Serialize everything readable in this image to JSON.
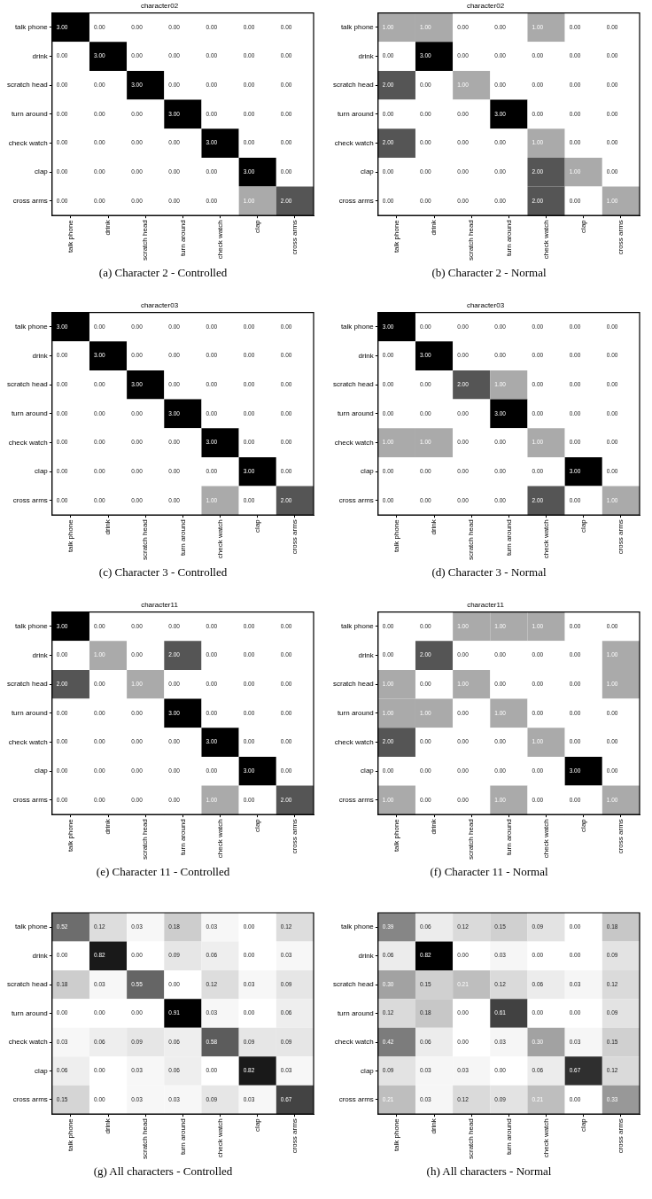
{
  "chart_data": [
    {
      "type": "heatmap",
      "title": "character02",
      "annotations": [
        "(a) Character 2 - Controlled"
      ],
      "categories": [
        "talk phone",
        "drink",
        "scratch head",
        "turn around",
        "check watch",
        "clap",
        "cross arms"
      ],
      "y_categories": [
        "talk phone",
        "drink",
        "scratch head",
        "turn around",
        "check watch",
        "clap",
        "cross arms"
      ],
      "cells": [
        [
          3,
          0,
          0,
          0,
          0,
          0,
          0
        ],
        [
          0,
          3,
          0,
          0,
          0,
          0,
          0
        ],
        [
          0,
          0,
          3,
          0,
          0,
          0,
          0
        ],
        [
          0,
          0,
          0,
          3,
          0,
          0,
          0
        ],
        [
          0,
          0,
          0,
          0,
          3,
          0,
          0
        ],
        [
          0,
          0,
          0,
          0,
          0,
          3,
          0
        ],
        [
          0,
          0,
          0,
          0,
          0,
          1,
          2
        ]
      ],
      "cell_labels": [
        [
          "3.00",
          "0.00",
          "0.00",
          "0.00",
          "0.00",
          "0.00",
          "0.00"
        ],
        [
          "0.00",
          "3.00",
          "0.00",
          "0.00",
          "0.00",
          "0.00",
          "0.00"
        ],
        [
          "0.00",
          "0.00",
          "3.00",
          "0.00",
          "0.00",
          "0.00",
          "0.00"
        ],
        [
          "0.00",
          "0.00",
          "0.00",
          "3.00",
          "0.00",
          "0.00",
          "0.00"
        ],
        [
          "0.00",
          "0.00",
          "0.00",
          "0.00",
          "3.00",
          "0.00",
          "0.00"
        ],
        [
          "0.00",
          "0.00",
          "0.00",
          "0.00",
          "0.00",
          "3.00",
          "0.00"
        ],
        [
          "0.00",
          "0.00",
          "0.00",
          "0.00",
          "0.00",
          "1.00",
          "2.00"
        ]
      ]
    },
    {
      "type": "heatmap",
      "title": "character02",
      "annotations": [
        "(b) Character 2 - Normal"
      ],
      "categories": [
        "talk phone",
        "drink",
        "scratch head",
        "turn around",
        "check watch",
        "clap",
        "cross arms"
      ],
      "y_categories": [
        "talk phone",
        "drink",
        "scratch head",
        "turn around",
        "check watch",
        "clap",
        "cross arms"
      ],
      "cells": [
        [
          1,
          1,
          0,
          0,
          1,
          0,
          0
        ],
        [
          0,
          3,
          0,
          0,
          0,
          0,
          0
        ],
        [
          2,
          0,
          1,
          0,
          0,
          0,
          0
        ],
        [
          0,
          0,
          0,
          3,
          0,
          0,
          0
        ],
        [
          2,
          0,
          0,
          0,
          1,
          0,
          0
        ],
        [
          0,
          0,
          0,
          0,
          2,
          1,
          0
        ],
        [
          0,
          0,
          0,
          0,
          2,
          0,
          1
        ]
      ],
      "cell_labels": [
        [
          "1.00",
          "1.00",
          "0.00",
          "0.00",
          "1.00",
          "0.00",
          "0.00"
        ],
        [
          "0.00",
          "3.00",
          "0.00",
          "0.00",
          "0.00",
          "0.00",
          "0.00"
        ],
        [
          "2.00",
          "0.00",
          "1.00",
          "0.00",
          "0.00",
          "0.00",
          "0.00"
        ],
        [
          "0.00",
          "0.00",
          "0.00",
          "3.00",
          "0.00",
          "0.00",
          "0.00"
        ],
        [
          "2.00",
          "0.00",
          "0.00",
          "0.00",
          "1.00",
          "0.00",
          "0.00"
        ],
        [
          "0.00",
          "0.00",
          "0.00",
          "0.00",
          "2.00",
          "1.00",
          "0.00"
        ],
        [
          "0.00",
          "0.00",
          "0.00",
          "0.00",
          "2.00",
          "0.00",
          "1.00"
        ]
      ]
    },
    {
      "type": "heatmap",
      "title": "character03",
      "annotations": [
        "(c) Character 3 - Controlled"
      ],
      "categories": [
        "talk phone",
        "drink",
        "scratch head",
        "turn around",
        "check watch",
        "clap",
        "cross arms"
      ],
      "y_categories": [
        "talk phone",
        "drink",
        "scratch head",
        "turn around",
        "check watch",
        "clap",
        "cross arms"
      ],
      "cells": [
        [
          3,
          0,
          0,
          0,
          0,
          0,
          0
        ],
        [
          0,
          3,
          0,
          0,
          0,
          0,
          0
        ],
        [
          0,
          0,
          3,
          0,
          0,
          0,
          0
        ],
        [
          0,
          0,
          0,
          3,
          0,
          0,
          0
        ],
        [
          0,
          0,
          0,
          0,
          3,
          0,
          0
        ],
        [
          0,
          0,
          0,
          0,
          0,
          3,
          0
        ],
        [
          0,
          0,
          0,
          0,
          1,
          0,
          2
        ]
      ],
      "cell_labels": [
        [
          "3.00",
          "0.00",
          "0.00",
          "0.00",
          "0.00",
          "0.00",
          "0.00"
        ],
        [
          "0.00",
          "3.00",
          "0.00",
          "0.00",
          "0.00",
          "0.00",
          "0.00"
        ],
        [
          "0.00",
          "0.00",
          "3.00",
          "0.00",
          "0.00",
          "0.00",
          "0.00"
        ],
        [
          "0.00",
          "0.00",
          "0.00",
          "3.00",
          "0.00",
          "0.00",
          "0.00"
        ],
        [
          "0.00",
          "0.00",
          "0.00",
          "0.00",
          "3.00",
          "0.00",
          "0.00"
        ],
        [
          "0.00",
          "0.00",
          "0.00",
          "0.00",
          "0.00",
          "3.00",
          "0.00"
        ],
        [
          "0.00",
          "0.00",
          "0.00",
          "0.00",
          "1.00",
          "0.00",
          "2.00"
        ]
      ]
    },
    {
      "type": "heatmap",
      "title": "character03",
      "annotations": [
        "(d) Character 3 - Normal"
      ],
      "categories": [
        "talk phone",
        "drink",
        "scratch head",
        "turn around",
        "check watch",
        "clap",
        "cross arms"
      ],
      "y_categories": [
        "talk phone",
        "drink",
        "scratch head",
        "turn around",
        "check watch",
        "clap",
        "cross arms"
      ],
      "cells": [
        [
          3,
          0,
          0,
          0,
          0,
          0,
          0
        ],
        [
          0,
          3,
          0,
          0,
          0,
          0,
          0
        ],
        [
          0,
          0,
          2,
          1,
          0,
          0,
          0
        ],
        [
          0,
          0,
          0,
          3,
          0,
          0,
          0
        ],
        [
          1,
          1,
          0,
          0,
          1,
          0,
          0
        ],
        [
          0,
          0,
          0,
          0,
          0,
          3,
          0
        ],
        [
          0,
          0,
          0,
          0,
          2,
          0,
          1
        ]
      ],
      "cell_labels": [
        [
          "3.00",
          "0.00",
          "0.00",
          "0.00",
          "0.00",
          "0.00",
          "0.00"
        ],
        [
          "0.00",
          "3.00",
          "0.00",
          "0.00",
          "0.00",
          "0.00",
          "0.00"
        ],
        [
          "0.00",
          "0.00",
          "2.00",
          "1.00",
          "0.00",
          "0.00",
          "0.00"
        ],
        [
          "0.00",
          "0.00",
          "0.00",
          "3.00",
          "0.00",
          "0.00",
          "0.00"
        ],
        [
          "1.00",
          "1.00",
          "0.00",
          "0.00",
          "1.00",
          "0.00",
          "0.00"
        ],
        [
          "0.00",
          "0.00",
          "0.00",
          "0.00",
          "0.00",
          "3.00",
          "0.00"
        ],
        [
          "0.00",
          "0.00",
          "0.00",
          "0.00",
          "2.00",
          "0.00",
          "1.00"
        ]
      ]
    },
    {
      "type": "heatmap",
      "title": "character11",
      "annotations": [
        "(e) Character 11 - Controlled"
      ],
      "categories": [
        "talk phone",
        "drink",
        "scratch head",
        "turn around",
        "check watch",
        "clap",
        "cross arms"
      ],
      "y_categories": [
        "talk phone",
        "drink",
        "scratch head",
        "turn around",
        "check watch",
        "clap",
        "cross arms"
      ],
      "cells": [
        [
          3,
          0,
          0,
          0,
          0,
          0,
          0
        ],
        [
          0,
          1,
          0,
          2,
          0,
          0,
          0
        ],
        [
          2,
          0,
          1,
          0,
          0,
          0,
          0
        ],
        [
          0,
          0,
          0,
          3,
          0,
          0,
          0
        ],
        [
          0,
          0,
          0,
          0,
          3,
          0,
          0
        ],
        [
          0,
          0,
          0,
          0,
          0,
          3,
          0
        ],
        [
          0,
          0,
          0,
          0,
          1,
          0,
          2
        ]
      ],
      "cell_labels": [
        [
          "3.00",
          "0.00",
          "0.00",
          "0.00",
          "0.00",
          "0.00",
          "0.00"
        ],
        [
          "0.00",
          "1.00",
          "0.00",
          "2.00",
          "0.00",
          "0.00",
          "0.00"
        ],
        [
          "2.00",
          "0.00",
          "1.00",
          "0.00",
          "0.00",
          "0.00",
          "0.00"
        ],
        [
          "0.00",
          "0.00",
          "0.00",
          "3.00",
          "0.00",
          "0.00",
          "0.00"
        ],
        [
          "0.00",
          "0.00",
          "0.00",
          "0.00",
          "3.00",
          "0.00",
          "0.00"
        ],
        [
          "0.00",
          "0.00",
          "0.00",
          "0.00",
          "0.00",
          "3.00",
          "0.00"
        ],
        [
          "0.00",
          "0.00",
          "0.00",
          "0.00",
          "1.00",
          "0.00",
          "2.00"
        ]
      ]
    },
    {
      "type": "heatmap",
      "title": "character11",
      "annotations": [
        "(f) Character 11 - Normal"
      ],
      "categories": [
        "talk phone",
        "drink",
        "scratch head",
        "turn around",
        "check watch",
        "clap",
        "cross arms"
      ],
      "y_categories": [
        "talk phone",
        "drink",
        "scratch head",
        "turn around",
        "check watch",
        "clap",
        "cross arms"
      ],
      "cells": [
        [
          0,
          0,
          1,
          1,
          1,
          0,
          0
        ],
        [
          0,
          2,
          0,
          0,
          0,
          0,
          1
        ],
        [
          1,
          0,
          1,
          0,
          0,
          0,
          1
        ],
        [
          1,
          1,
          0,
          1,
          0,
          0,
          0
        ],
        [
          2,
          0,
          0,
          0,
          1,
          0,
          0
        ],
        [
          0,
          0,
          0,
          0,
          0,
          3,
          0
        ],
        [
          1,
          0,
          0,
          1,
          0,
          0,
          1
        ]
      ],
      "cell_labels": [
        [
          "0.00",
          "0.00",
          "1.00",
          "1.00",
          "1.00",
          "0.00",
          "0.00"
        ],
        [
          "0.00",
          "2.00",
          "0.00",
          "0.00",
          "0.00",
          "0.00",
          "1.00"
        ],
        [
          "1.00",
          "0.00",
          "1.00",
          "0.00",
          "0.00",
          "0.00",
          "1.00"
        ],
        [
          "1.00",
          "1.00",
          "0.00",
          "1.00",
          "0.00",
          "0.00",
          "0.00"
        ],
        [
          "2.00",
          "0.00",
          "0.00",
          "0.00",
          "1.00",
          "0.00",
          "0.00"
        ],
        [
          "0.00",
          "0.00",
          "0.00",
          "0.00",
          "0.00",
          "3.00",
          "0.00"
        ],
        [
          "1.00",
          "0.00",
          "0.00",
          "1.00",
          "0.00",
          "0.00",
          "1.00"
        ]
      ]
    },
    {
      "type": "heatmap",
      "annotations": [
        "(g) All characters - Controlled"
      ],
      "categories": [
        "talk phone",
        "drink",
        "scratch head",
        "turn around",
        "check watch",
        "clap",
        "cross arms"
      ],
      "y_categories": [
        "talk phone",
        "drink",
        "scratch head",
        "turn around",
        "check watch",
        "clap",
        "cross arms"
      ],
      "cells": [
        [
          0.52,
          0.12,
          0.03,
          0.18,
          0.03,
          0,
          0.12
        ],
        [
          0,
          0.82,
          0,
          0.09,
          0.06,
          0,
          0.03
        ],
        [
          0.18,
          0.03,
          0.55,
          0,
          0.12,
          0.03,
          0.09
        ],
        [
          0,
          0,
          0,
          0.91,
          0.03,
          0,
          0.06
        ],
        [
          0.03,
          0.06,
          0.09,
          0.06,
          0.58,
          0.09,
          0.09
        ],
        [
          0.06,
          0,
          0.03,
          0.06,
          0,
          0.82,
          0.03
        ],
        [
          0.15,
          0,
          0.03,
          0.03,
          0.09,
          0.03,
          0.67
        ]
      ],
      "cell_labels": [
        [
          "0.52",
          "0.12",
          "0.03",
          "0.18",
          "0.03",
          "0.00",
          "0.12"
        ],
        [
          "0.00",
          "0.82",
          "0.00",
          "0.09",
          "0.06",
          "0.00",
          "0.03"
        ],
        [
          "0.18",
          "0.03",
          "0.55",
          "0.00",
          "0.12",
          "0.03",
          "0.09"
        ],
        [
          "0.00",
          "0.00",
          "0.00",
          "0.91",
          "0.03",
          "0.00",
          "0.06"
        ],
        [
          "0.03",
          "0.06",
          "0.09",
          "0.06",
          "0.58",
          "0.09",
          "0.09"
        ],
        [
          "0.06",
          "0.00",
          "0.03",
          "0.06",
          "0.00",
          "0.82",
          "0.03"
        ],
        [
          "0.15",
          "0.00",
          "0.03",
          "0.03",
          "0.09",
          "0.03",
          "0.67"
        ]
      ]
    },
    {
      "type": "heatmap",
      "annotations": [
        "(h) All characters - Normal"
      ],
      "categories": [
        "talk phone",
        "drink",
        "scratch head",
        "turn around",
        "check watch",
        "clap",
        "cross arms"
      ],
      "y_categories": [
        "talk phone",
        "drink",
        "scratch head",
        "turn around",
        "check watch",
        "clap",
        "cross arms"
      ],
      "cells": [
        [
          0.39,
          0.06,
          0.12,
          0.15,
          0.09,
          0,
          0.18
        ],
        [
          0.06,
          0.82,
          0,
          0.03,
          0,
          0,
          0.09
        ],
        [
          0.3,
          0.15,
          0.21,
          0.12,
          0.06,
          0.03,
          0.12
        ],
        [
          0.12,
          0.18,
          0,
          0.61,
          0,
          0,
          0.09
        ],
        [
          0.42,
          0.06,
          0,
          0.03,
          0.3,
          0.03,
          0.15
        ],
        [
          0.09,
          0.03,
          0.03,
          0,
          0.06,
          0.67,
          0.12
        ],
        [
          0.21,
          0.03,
          0.12,
          0.09,
          0.21,
          0,
          0.33
        ]
      ],
      "cell_labels": [
        [
          "0.39",
          "0.06",
          "0.12",
          "0.15",
          "0.09",
          "0.00",
          "0.18"
        ],
        [
          "0.06",
          "0.82",
          "0.00",
          "0.03",
          "0.00",
          "0.00",
          "0.09"
        ],
        [
          "0.30",
          "0.15",
          "0.21",
          "0.12",
          "0.06",
          "0.03",
          "0.12"
        ],
        [
          "0.12",
          "0.18",
          "0.00",
          "0.61",
          "0.00",
          "0.00",
          "0.09"
        ],
        [
          "0.42",
          "0.06",
          "0.00",
          "0.03",
          "0.30",
          "0.03",
          "0.15"
        ],
        [
          "0.09",
          "0.03",
          "0.03",
          "0.00",
          "0.06",
          "0.67",
          "0.12"
        ],
        [
          "0.21",
          "0.03",
          "0.12",
          "0.09",
          "0.21",
          "0.00",
          "0.33"
        ]
      ]
    }
  ]
}
